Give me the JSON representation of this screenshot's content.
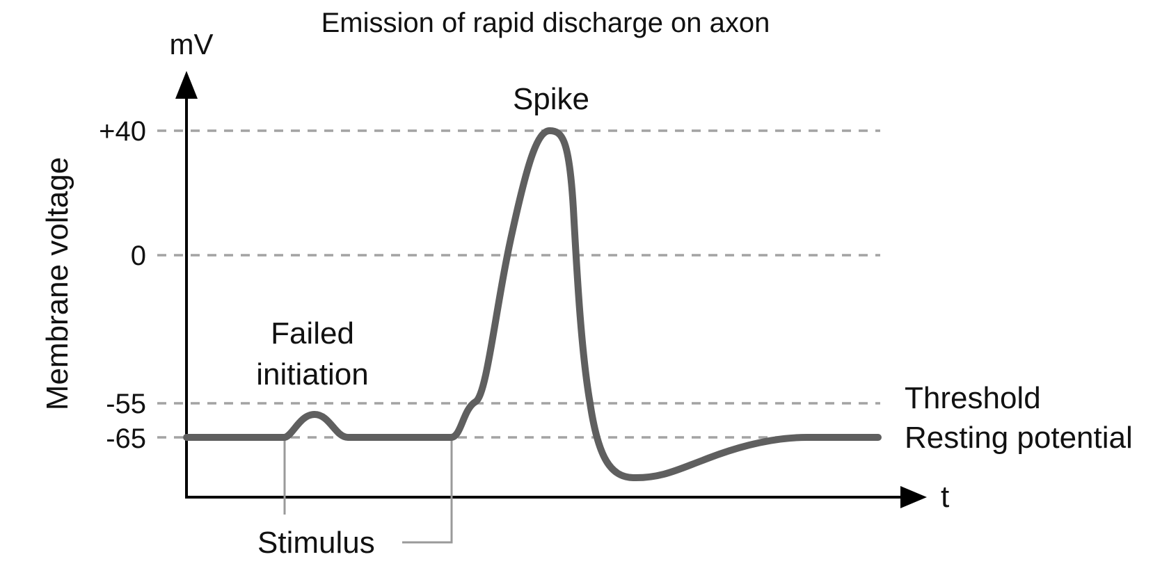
{
  "title": "Emission of rapid discharge on axon",
  "y_axis": {
    "label": "Membrane voltage",
    "unit": "mV",
    "ticks": [
      {
        "value": 40,
        "label": "+40"
      },
      {
        "value": 0,
        "label": "0"
      },
      {
        "value": -55,
        "label": "-55"
      },
      {
        "value": -65,
        "label": "-65"
      }
    ]
  },
  "x_axis": {
    "label": "t"
  },
  "reference_lines": {
    "threshold": {
      "value": -55,
      "label": "Threshold"
    },
    "resting": {
      "value": -65,
      "label": "Resting potential"
    }
  },
  "annotations": {
    "spike": "Spike",
    "failed_line1": "Failed",
    "failed_line2": "initiation",
    "stimulus": "Stimulus"
  },
  "colors": {
    "trace": "#5f5f5f",
    "reference_lines": "#a3a3a3",
    "axes": "#000000"
  }
}
